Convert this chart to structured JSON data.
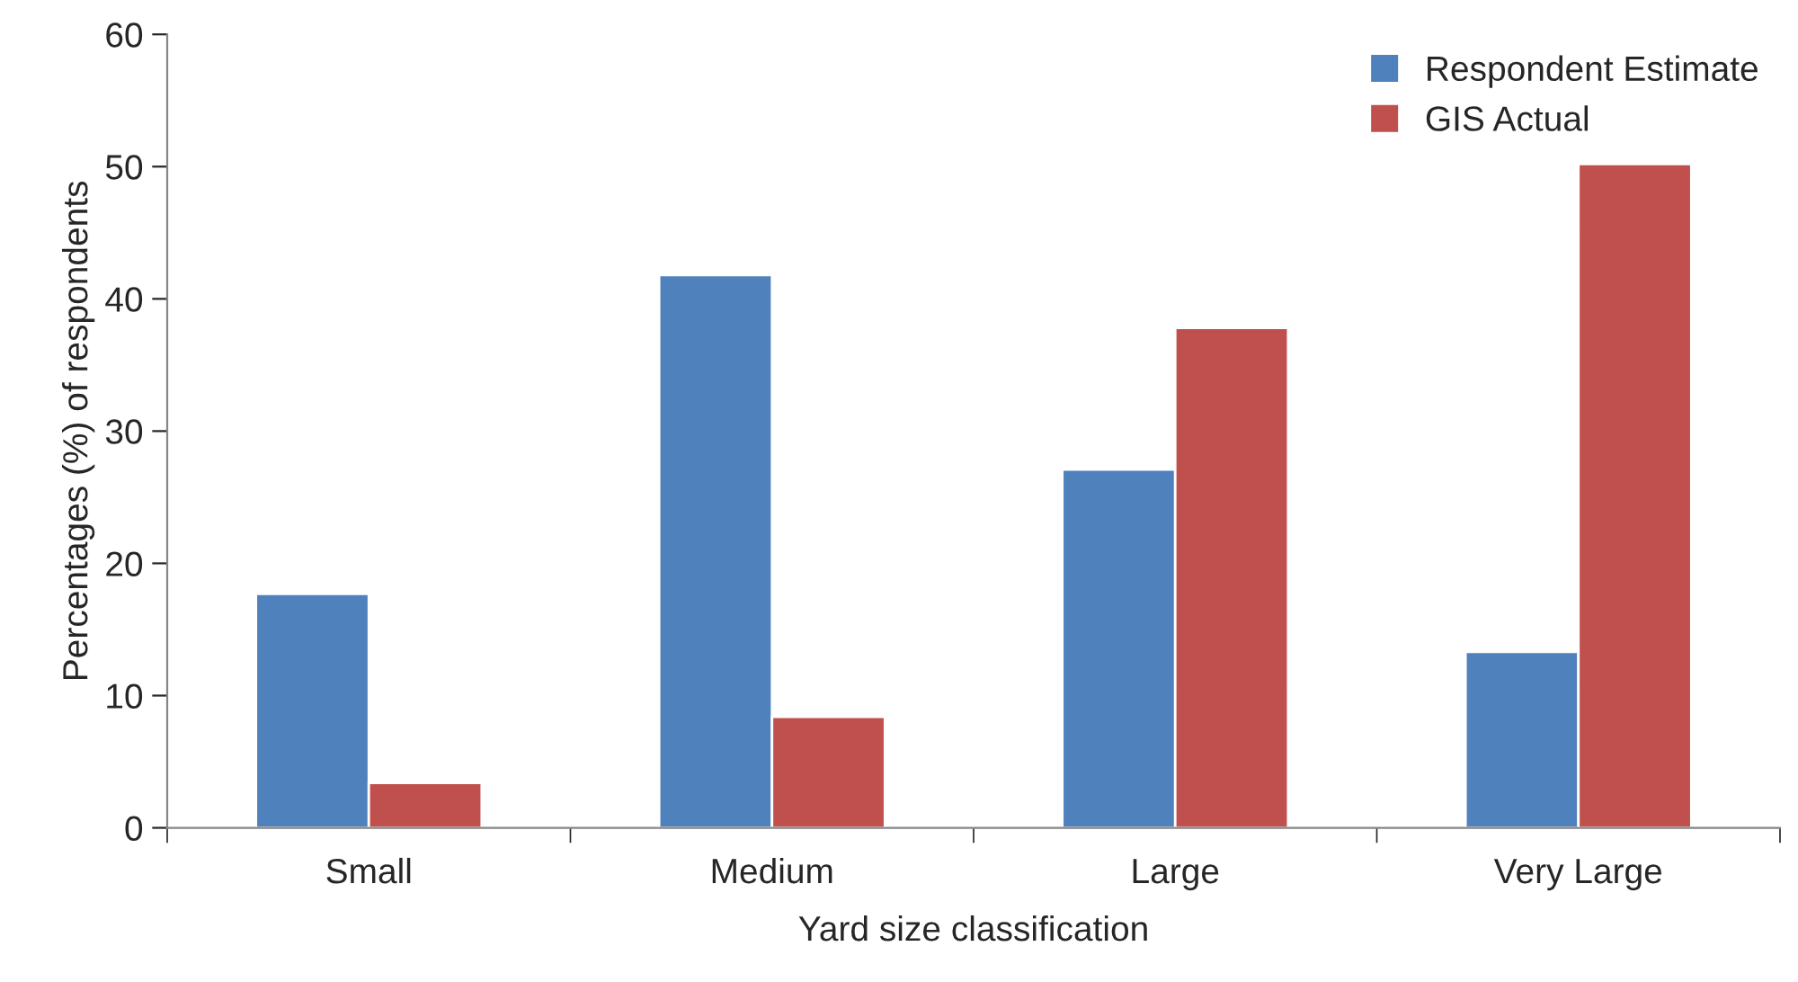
{
  "chart_data": {
    "type": "bar",
    "xlabel": "Yard size classification",
    "ylabel": "Percentages (%) of respondents",
    "categories": [
      "Small",
      "Medium",
      "Large",
      "Very Large"
    ],
    "series": [
      {
        "name": "Respondent Estimate",
        "color": "#4f81bd",
        "values": [
          17.7,
          41.8,
          27.1,
          13.3
        ]
      },
      {
        "name": "GIS Actual",
        "color": "#c0504d",
        "values": [
          3.4,
          8.4,
          37.8,
          50.2
        ]
      }
    ],
    "ylim": [
      0,
      60
    ],
    "yticks": [
      0,
      10,
      20,
      30,
      40,
      50,
      60
    ],
    "grid": false,
    "legend": "top right"
  }
}
